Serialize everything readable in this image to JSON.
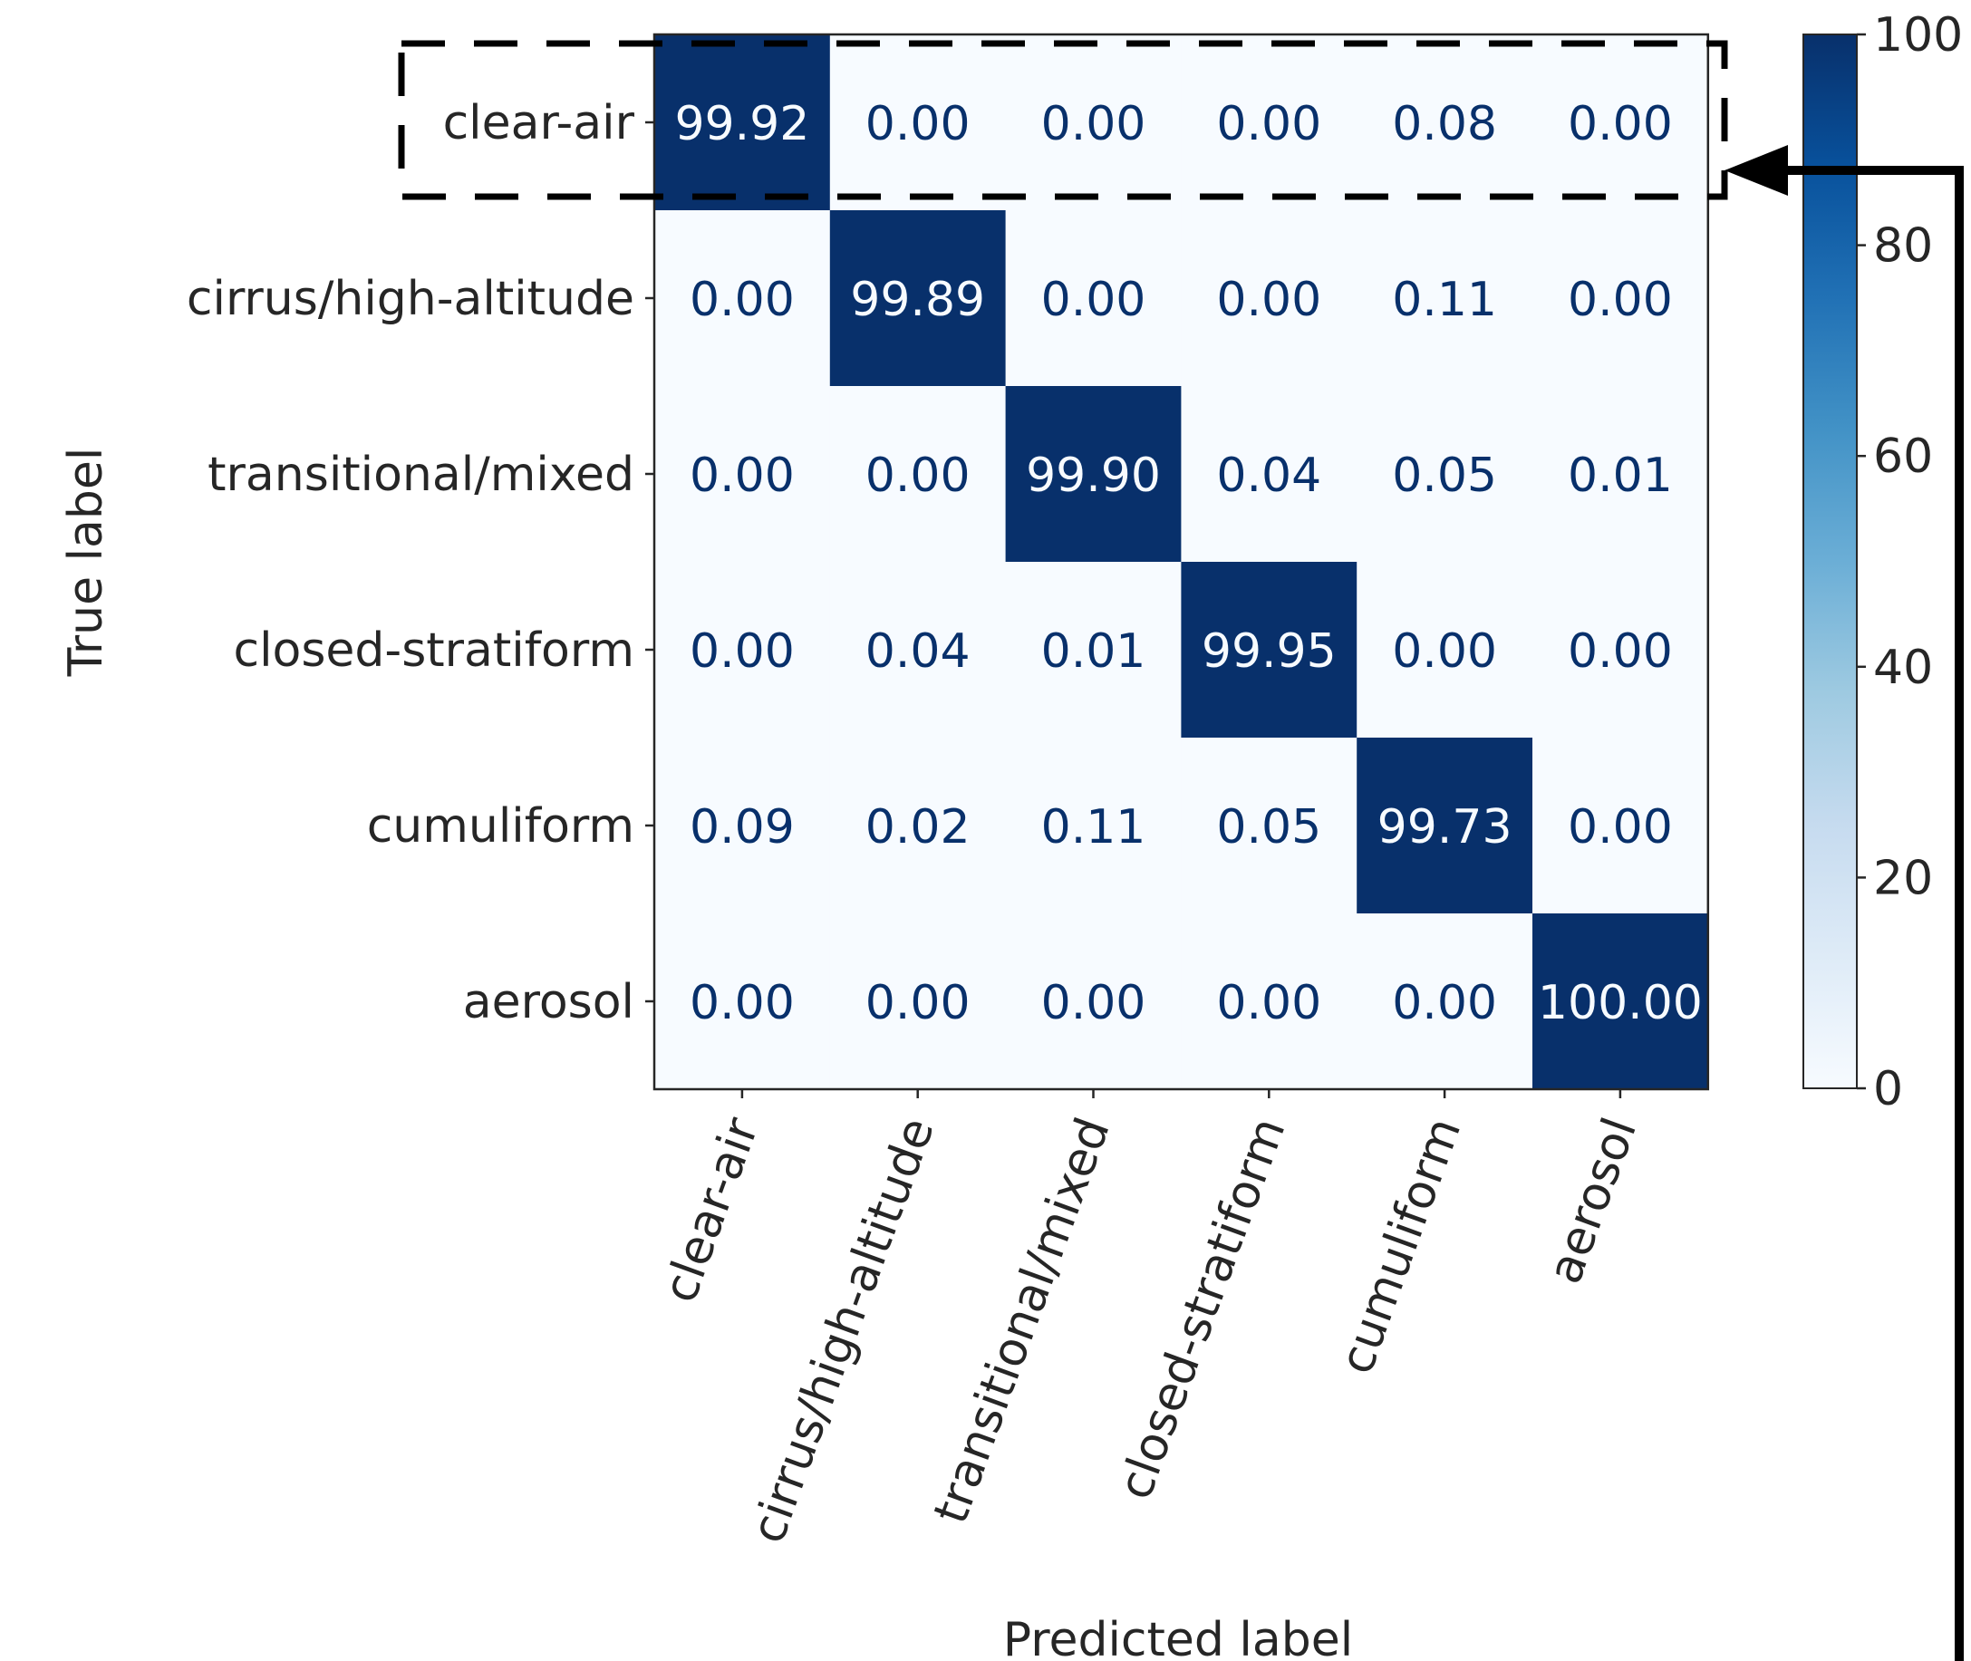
{
  "chart_data": {
    "type": "heatmap",
    "title": "",
    "xlabel": "Predicted label",
    "ylabel": "True label",
    "row_labels": [
      "clear-air",
      "cirrus/high-altitude",
      "transitional/mixed",
      "closed-stratiform",
      "cumuliform",
      "aerosol"
    ],
    "col_labels": [
      "clear-air",
      "cirrus/high-altitude",
      "transitional/mixed",
      "closed-stratiform",
      "cumuliform",
      "aerosol"
    ],
    "values": [
      [
        "99.92",
        "0.00",
        "0.00",
        "0.00",
        "0.08",
        "0.00"
      ],
      [
        "0.00",
        "99.89",
        "0.00",
        "0.00",
        "0.11",
        "0.00"
      ],
      [
        "0.00",
        "0.00",
        "99.90",
        "0.04",
        "0.05",
        "0.01"
      ],
      [
        "0.00",
        "0.04",
        "0.01",
        "99.95",
        "0.00",
        "0.00"
      ],
      [
        "0.09",
        "0.02",
        "0.11",
        "0.05",
        "99.73",
        "0.00"
      ],
      [
        "0.00",
        "0.00",
        "0.00",
        "0.00",
        "0.00",
        "100.00"
      ]
    ],
    "colorbar": {
      "range": [
        0,
        100
      ],
      "ticks": [
        "0",
        "20",
        "40",
        "60",
        "80",
        "100"
      ],
      "colormap": "Blues"
    },
    "colors": {
      "low": "#f7fbff",
      "high": "#08306b",
      "dark_text": "#08306b",
      "light_text": "#f7fbff",
      "axis": "#262626"
    },
    "annotation": {
      "highlighted_row": "clear-air",
      "style": "dashed box with arrow"
    }
  }
}
